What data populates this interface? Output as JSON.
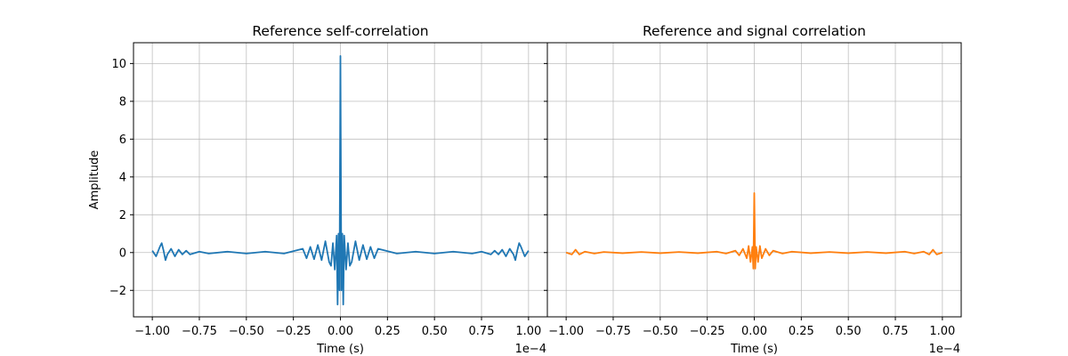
{
  "chart_data": [
    {
      "type": "line",
      "title": "Reference self-correlation",
      "xlabel": "Time (s)",
      "ylabel": "Amplitude",
      "x_offset_label": "1e−4",
      "xlim": [
        -1.1,
        1.1
      ],
      "ylim": [
        -3.4,
        11.1
      ],
      "x_ticks": [
        -1.0,
        -0.75,
        -0.5,
        -0.25,
        0.0,
        0.25,
        0.5,
        0.75,
        1.0
      ],
      "x_tick_labels": [
        "−1.00",
        "−0.75",
        "−0.50",
        "−0.25",
        "0.00",
        "0.25",
        "0.50",
        "0.75",
        "1.00"
      ],
      "y_ticks": [
        -2,
        0,
        2,
        4,
        6,
        8,
        10
      ],
      "y_tick_labels": [
        "−2",
        "0",
        "2",
        "4",
        "6",
        "8",
        "10"
      ],
      "grid": true,
      "series": [
        {
          "color": "#1f77b4",
          "x": [
            -1.0,
            -0.98,
            -0.96,
            -0.95,
            -0.94,
            -0.93,
            -0.92,
            -0.9,
            -0.88,
            -0.86,
            -0.84,
            -0.82,
            -0.8,
            -0.75,
            -0.7,
            -0.6,
            -0.5,
            -0.4,
            -0.3,
            -0.2,
            -0.18,
            -0.16,
            -0.14,
            -0.12,
            -0.1,
            -0.08,
            -0.06,
            -0.05,
            -0.04,
            -0.03,
            -0.02,
            -0.015,
            -0.01,
            -0.005,
            0.0,
            0.005,
            0.01,
            0.015,
            0.02,
            0.03,
            0.04,
            0.05,
            0.06,
            0.08,
            0.1,
            0.12,
            0.14,
            0.16,
            0.18,
            0.2,
            0.3,
            0.4,
            0.5,
            0.6,
            0.7,
            0.75,
            0.8,
            0.82,
            0.84,
            0.86,
            0.88,
            0.9,
            0.92,
            0.93,
            0.94,
            0.95,
            0.96,
            0.98,
            1.0
          ],
          "y": [
            0.1,
            -0.2,
            0.3,
            0.5,
            0.1,
            -0.4,
            -0.1,
            0.2,
            -0.2,
            0.15,
            -0.1,
            0.1,
            -0.1,
            0.05,
            -0.05,
            0.05,
            -0.05,
            0.05,
            -0.05,
            0.2,
            -0.3,
            0.3,
            -0.35,
            0.4,
            -0.4,
            0.6,
            -0.5,
            -0.7,
            0.5,
            -0.9,
            0.9,
            -2.75,
            1.0,
            -2.0,
            10.4,
            -2.0,
            1.0,
            -2.75,
            0.9,
            -0.9,
            0.5,
            -0.7,
            -0.5,
            0.6,
            -0.4,
            0.4,
            -0.35,
            0.3,
            -0.3,
            0.2,
            -0.05,
            0.05,
            -0.05,
            0.05,
            -0.05,
            0.05,
            -0.1,
            0.1,
            -0.1,
            0.15,
            -0.2,
            0.2,
            -0.1,
            -0.4,
            0.1,
            0.5,
            0.3,
            -0.2,
            0.1
          ]
        }
      ]
    },
    {
      "type": "line",
      "title": "Reference and signal correlation",
      "xlabel": "Time (s)",
      "ylabel": "",
      "x_offset_label": "1e−4",
      "xlim": [
        -1.1,
        1.1
      ],
      "ylim": [
        -3.4,
        11.1
      ],
      "x_ticks": [
        -1.0,
        -0.75,
        -0.5,
        -0.25,
        0.0,
        0.25,
        0.5,
        0.75,
        1.0
      ],
      "x_tick_labels": [
        "−1.00",
        "−0.75",
        "−0.50",
        "−0.25",
        "0.00",
        "0.25",
        "0.50",
        "0.75",
        "1.00"
      ],
      "y_ticks": [
        -2,
        0,
        2,
        4,
        6,
        8,
        10
      ],
      "y_tick_labels": [],
      "grid": true,
      "series": [
        {
          "color": "#ff7f0e",
          "x": [
            -1.0,
            -0.97,
            -0.95,
            -0.93,
            -0.9,
            -0.85,
            -0.8,
            -0.7,
            -0.6,
            -0.5,
            -0.4,
            -0.3,
            -0.2,
            -0.15,
            -0.1,
            -0.08,
            -0.06,
            -0.04,
            -0.03,
            -0.02,
            -0.01,
            -0.005,
            0.0,
            0.005,
            0.01,
            0.02,
            0.03,
            0.04,
            0.06,
            0.08,
            0.1,
            0.15,
            0.2,
            0.3,
            0.4,
            0.5,
            0.6,
            0.7,
            0.8,
            0.85,
            0.9,
            0.93,
            0.95,
            0.97,
            1.0
          ],
          "y": [
            0.0,
            -0.1,
            0.15,
            -0.1,
            0.05,
            -0.05,
            0.03,
            -0.03,
            0.03,
            -0.03,
            0.03,
            -0.03,
            0.05,
            -0.05,
            0.1,
            -0.15,
            0.2,
            -0.3,
            0.35,
            -0.5,
            0.3,
            -0.85,
            3.15,
            -0.85,
            0.3,
            -0.5,
            0.35,
            -0.3,
            0.2,
            -0.15,
            0.1,
            -0.05,
            0.05,
            -0.03,
            0.03,
            -0.03,
            0.03,
            -0.03,
            0.05,
            -0.05,
            0.05,
            -0.1,
            0.15,
            -0.1,
            0.0
          ]
        }
      ]
    }
  ]
}
